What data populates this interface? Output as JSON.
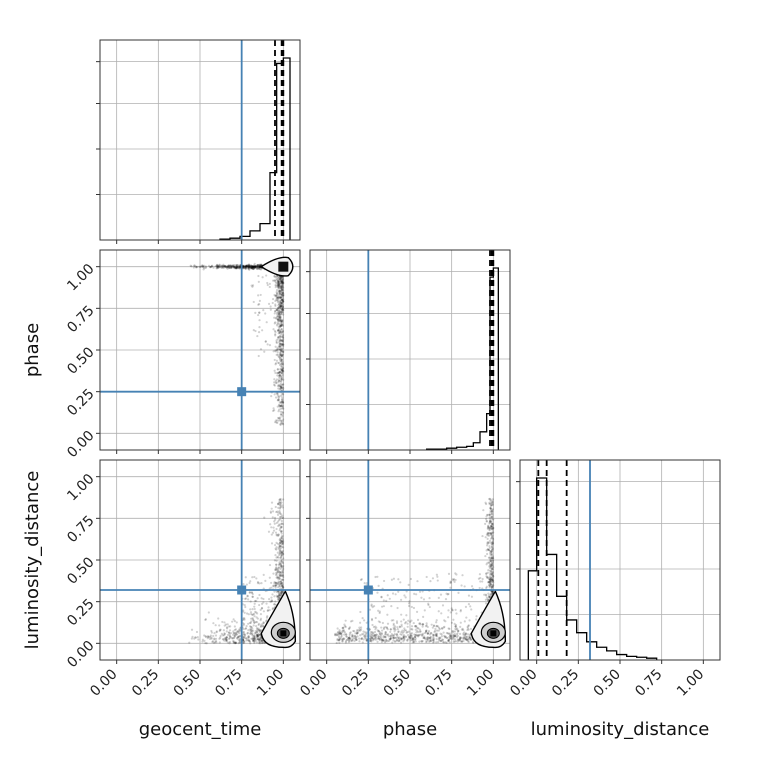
{
  "chart_data": {
    "type": "corner",
    "parameters": [
      "geocent_time",
      "phase",
      "luminosity_distance"
    ],
    "axis_labels": {
      "x": [
        "geocent_time",
        "phase",
        "luminosity_distance"
      ],
      "y": [
        "",
        "phase",
        "luminosity_distance"
      ]
    },
    "range": [
      -0.1,
      1.1
    ],
    "ticks": [
      0.0,
      0.25,
      0.5,
      0.75,
      1.0
    ],
    "tick_labels": [
      "0.00",
      "0.25",
      "0.50",
      "0.75",
      "1.00"
    ],
    "truths": [
      0.75,
      0.25,
      0.32
    ],
    "truth_color": "#4682b4",
    "grid": true,
    "histograms": [
      {
        "param": "geocent_time",
        "bin_edges": [
          0.62,
          0.68,
          0.74,
          0.8,
          0.86,
          0.92,
          0.96,
          1.0,
          1.04
        ],
        "density": [
          0.005,
          0.01,
          0.02,
          0.05,
          0.09,
          0.37,
          0.97,
          1.0
        ],
        "quantiles": [
          0.95,
          0.99,
          1.0
        ]
      },
      {
        "param": "phase",
        "bin_edges": [
          0.6,
          0.66,
          0.72,
          0.78,
          0.84,
          0.88,
          0.92,
          0.96,
          0.98,
          1.0,
          1.03
        ],
        "density": [
          0.005,
          0.005,
          0.01,
          0.015,
          0.02,
          0.04,
          0.1,
          0.2,
          0.95,
          1.0
        ],
        "quantiles": [
          0.98,
          0.99,
          1.0
        ]
      },
      {
        "param": "luminosity_distance",
        "bin_edges": [
          -0.05,
          0.0,
          0.06,
          0.12,
          0.18,
          0.24,
          0.3,
          0.36,
          0.42,
          0.48,
          0.54,
          0.6,
          0.66,
          0.72
        ],
        "density": [
          0.49,
          1.0,
          0.58,
          0.35,
          0.22,
          0.15,
          0.1,
          0.07,
          0.05,
          0.03,
          0.02,
          0.015,
          0.01
        ],
        "quantiles": [
          0.01,
          0.06,
          0.18
        ]
      }
    ],
    "density_peaks": [
      {
        "x_param": "geocent_time",
        "y_param": "phase",
        "peak": [
          1.0,
          1.0
        ]
      },
      {
        "x_param": "geocent_time",
        "y_param": "luminosity_distance",
        "peak": [
          1.0,
          0.06
        ]
      },
      {
        "x_param": "phase",
        "y_param": "luminosity_distance",
        "peak": [
          1.0,
          0.06
        ]
      }
    ]
  }
}
